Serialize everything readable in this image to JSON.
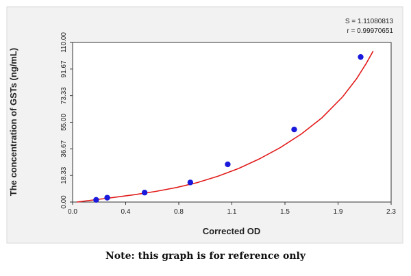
{
  "caption": "Note: this graph is for reference only",
  "chart_data": {
    "type": "scatter",
    "title": "",
    "xlabel": "Corrected OD",
    "ylabel": "The concentration of GSTs (ng/mL)",
    "xlim": [
      0.0,
      2.3
    ],
    "ylim": [
      0.0,
      110.0
    ],
    "x_ticks": [
      "0.0",
      "0.4",
      "0.8",
      "1.1",
      "1.5",
      "1.9",
      "2.3"
    ],
    "x_tick_values": [
      0.0,
      0.3833,
      0.7667,
      1.15,
      1.5333,
      1.9167,
      2.3
    ],
    "y_ticks": [
      "0.00",
      "18.33",
      "36.67",
      "55.00",
      "73.33",
      "91.67",
      "110.00"
    ],
    "y_tick_values": [
      0.0,
      18.33,
      36.67,
      55.0,
      73.33,
      91.67,
      110.0
    ],
    "points": [
      {
        "x": 0.17,
        "y": 1.5
      },
      {
        "x": 0.25,
        "y": 3.0
      },
      {
        "x": 0.52,
        "y": 6.5
      },
      {
        "x": 0.85,
        "y": 13.5
      },
      {
        "x": 1.12,
        "y": 26.0
      },
      {
        "x": 1.6,
        "y": 50.0
      },
      {
        "x": 2.08,
        "y": 100.0
      }
    ],
    "fit_curve": {
      "x": [
        0.03,
        0.15,
        0.3,
        0.45,
        0.6,
        0.75,
        0.9,
        1.05,
        1.2,
        1.35,
        1.5,
        1.65,
        1.8,
        1.95,
        2.05,
        2.12,
        2.17
      ],
      "y": [
        0.0,
        1.4,
        3.2,
        5.1,
        7.3,
        10.0,
        13.4,
        17.8,
        23.2,
        29.8,
        37.6,
        46.8,
        58.0,
        72.5,
        85.0,
        95.5,
        104.0
      ]
    },
    "annotations": [
      "S = 1.11080813",
      "r = 0.99970651"
    ],
    "point_color": "#1a1adc",
    "curve_color": "#e21a1a",
    "grid": false
  }
}
